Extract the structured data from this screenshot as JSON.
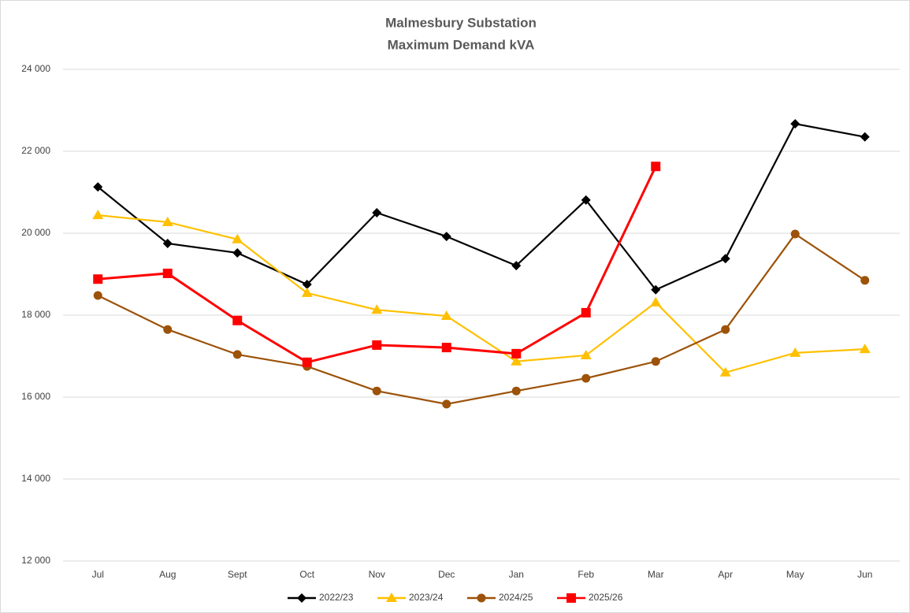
{
  "chart_data": {
    "type": "line",
    "title": "Malmesbury Substation",
    "subtitle": "Maximum Demand kVA",
    "categories": [
      "Jul",
      "Aug",
      "Sept",
      "Oct",
      "Nov",
      "Dec",
      "Jan",
      "Feb",
      "Mar",
      "Apr",
      "May",
      "Jun"
    ],
    "series": [
      {
        "name": "2022/23",
        "color": "#000000",
        "marker": "diamond",
        "values": [
          21130,
          19750,
          19520,
          18750,
          20500,
          19920,
          19210,
          20810,
          18620,
          19380,
          22670,
          22350
        ]
      },
      {
        "name": "2023/24",
        "color": "#ffc000",
        "marker": "triangle",
        "values": [
          20440,
          20270,
          19850,
          18540,
          18130,
          17980,
          16870,
          17020,
          18310,
          16600,
          17080,
          17170
        ]
      },
      {
        "name": "2024/25",
        "color": "#9c5208",
        "marker": "circle",
        "values": [
          18480,
          17650,
          17040,
          16750,
          16150,
          15830,
          16150,
          16460,
          16870,
          17650,
          19980,
          18850
        ]
      },
      {
        "name": "2025/26",
        "color": "#ff0000",
        "marker": "square",
        "values": [
          18880,
          19020,
          17870,
          16850,
          17270,
          17210,
          17060,
          18060,
          21630,
          null,
          null,
          null
        ]
      }
    ],
    "ylim": [
      12000,
      24000
    ],
    "yticks": [
      {
        "value": 12000,
        "label": "12 000"
      },
      {
        "value": 14000,
        "label": "14 000"
      },
      {
        "value": 16000,
        "label": "16 000"
      },
      {
        "value": 18000,
        "label": "18 000"
      },
      {
        "value": 20000,
        "label": "20 000"
      },
      {
        "value": 22000,
        "label": "22 000"
      },
      {
        "value": 24000,
        "label": "24 000"
      }
    ],
    "grid": true,
    "legend": "bottom"
  }
}
